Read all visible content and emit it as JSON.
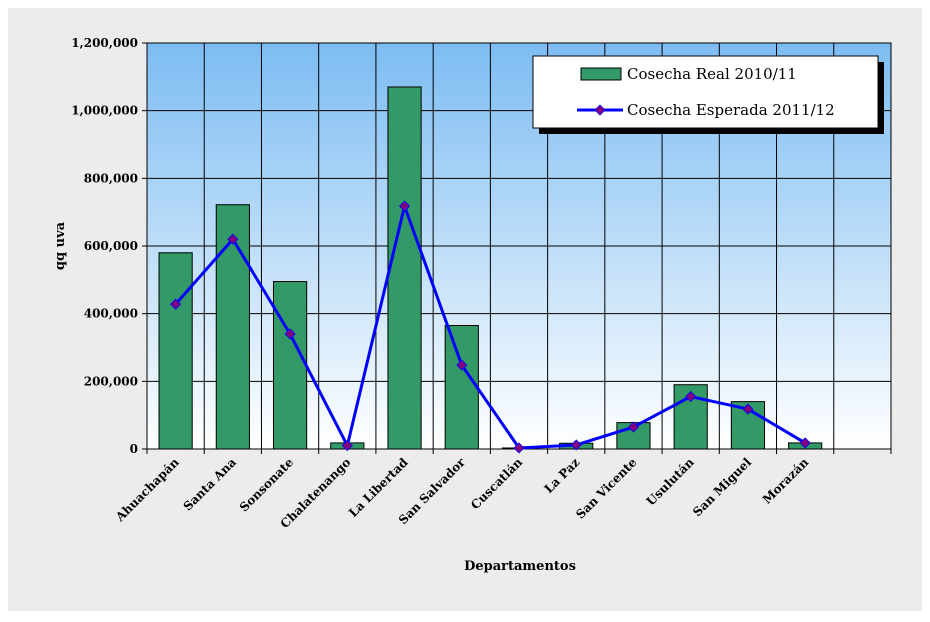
{
  "chart_data": {
    "type": "bar",
    "title": "",
    "xlabel": "Departamentos",
    "ylabel": "qq uva",
    "ylim": [
      0,
      1200000
    ],
    "yticks": [
      0,
      200000,
      400000,
      600000,
      800000,
      1000000,
      1200000
    ],
    "ytick_labels": [
      "0",
      "200,000",
      "400,000",
      "600,000",
      "800,000",
      "1,000,000",
      "1,200,000"
    ],
    "categories": [
      "Ahuachapán",
      "Santa Ana",
      "Sonsonate",
      "Chalatenango",
      "La Libertad",
      "San Salvador",
      "Cuscatlán",
      "La Paz",
      "San Vicente",
      "Usulután",
      "San Miguel",
      "Morazán"
    ],
    "grid": true,
    "legend_position": "top-right",
    "series": [
      {
        "name": "Cosecha Real 2010/11",
        "type": "bar",
        "color": "#339966",
        "values": [
          580000,
          722000,
          495000,
          18000,
          1070000,
          365000,
          3000,
          17000,
          78000,
          190000,
          140000,
          18000
        ]
      },
      {
        "name": "Cosecha Esperada 2011/12",
        "type": "line",
        "color": "#0000FF",
        "marker_color": "#800080",
        "values": [
          428000,
          620000,
          340000,
          10000,
          718000,
          248000,
          3000,
          12000,
          65000,
          155000,
          118000,
          18000
        ]
      }
    ]
  }
}
